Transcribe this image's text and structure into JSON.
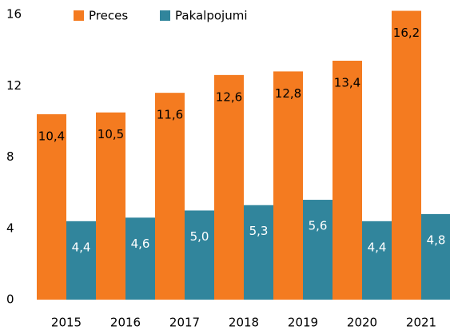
{
  "chart_data": {
    "type": "bar",
    "categories": [
      "2015",
      "2016",
      "2017",
      "2018",
      "2019",
      "2020",
      "2021"
    ],
    "series": [
      {
        "name": "Preces",
        "color": "#f47b20",
        "values": [
          10.4,
          10.5,
          11.6,
          12.6,
          12.8,
          13.4,
          16.2
        ],
        "value_labels": [
          "10,4",
          "10,5",
          "11,6",
          "12,6",
          "12,8",
          "13,4",
          "16,2"
        ]
      },
      {
        "name": "Pakalpojumi",
        "color": "#31859c",
        "values": [
          4.4,
          4.6,
          5.0,
          5.3,
          5.6,
          4.4,
          4.8
        ],
        "value_labels": [
          "4,4",
          "4,6",
          "5,0",
          "5,3",
          "5,6",
          "4,4",
          "4,8"
        ]
      }
    ],
    "ylim": [
      0,
      16
    ],
    "yticks": [
      0,
      4,
      8,
      12,
      16
    ],
    "grid": false,
    "legend": "top"
  }
}
